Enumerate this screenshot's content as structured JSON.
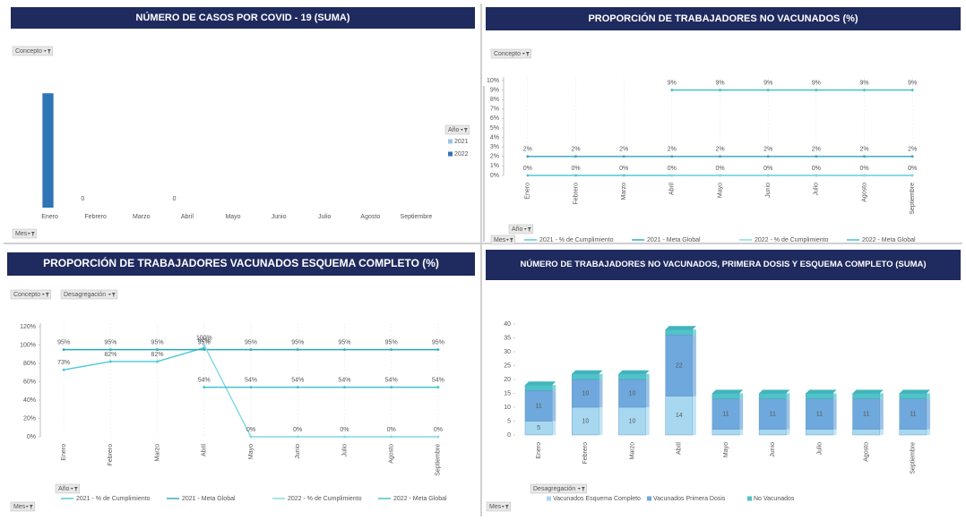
{
  "chart_data": [
    {
      "type": "bar",
      "title": "NÚMERO DE CASOS POR COVID - 19 (SUMA)",
      "filters": [
        "Concepto",
        "Año",
        "Mes"
      ],
      "categories": [
        "Enero",
        "Febrero",
        "Marzo",
        "Abril",
        "Mayo",
        "Junio",
        "Julio",
        "Agosto",
        "Septiembre"
      ],
      "series": [
        {
          "name": "2021",
          "color": "#9dc3e6",
          "values": [
            null,
            0,
            null,
            0,
            null,
            null,
            null,
            null,
            null
          ],
          "value_labels": [
            null,
            "0",
            null,
            "0",
            null,
            null,
            null,
            null,
            null
          ]
        },
        {
          "name": "2022",
          "color": "#2e75b6",
          "values": [
            9,
            null,
            null,
            null,
            null,
            null,
            null,
            null,
            null
          ]
        }
      ],
      "ylim": [
        0,
        10
      ],
      "legend": "right"
    },
    {
      "type": "line",
      "title": "PROPORCIÓN DE TRABAJADORES NO VACUNADOS (%)",
      "filters": [
        "Concepto",
        "Año",
        "Mes"
      ],
      "categories": [
        "Enero",
        "Febrero",
        "Marzo",
        "Abril",
        "Mayo",
        "Junio",
        "Julio",
        "Agosto",
        "Septiembre"
      ],
      "series": [
        {
          "name": "2021 - % de Cumplimiento",
          "color": "#4bc8d8",
          "values": [
            0,
            0,
            0,
            0,
            0,
            0,
            0,
            0,
            0
          ],
          "value_labels": [
            "0%",
            "0%",
            "0%",
            "0%",
            "0%",
            "0%",
            "0%",
            "0%",
            "0%"
          ]
        },
        {
          "name": "2021 - Meta Global",
          "color": "#2aa8b8",
          "values": [
            2,
            2,
            2,
            2,
            2,
            2,
            2,
            2,
            2
          ],
          "value_labels": [
            "2%",
            "2%",
            "2%",
            "2%",
            "2%",
            "2%",
            "2%",
            "2%",
            "2%"
          ]
        },
        {
          "name": "2022 - % de Cumplimiento",
          "color": "#7fd8e6",
          "values": [
            null,
            null,
            null,
            0,
            0,
            0,
            0,
            0,
            0
          ]
        },
        {
          "name": "2022 - Meta Global",
          "color": "#38c0cc",
          "values": [
            null,
            null,
            null,
            9,
            9,
            9,
            9,
            9,
            9
          ],
          "value_labels": [
            null,
            null,
            null,
            "9%",
            "9%",
            "9%",
            "9%",
            "9%",
            "9%"
          ]
        }
      ],
      "ylim": [
        0,
        10
      ],
      "yticks": [
        {
          "value": 0,
          "label": "0%"
        },
        {
          "value": 1,
          "label": "1%"
        },
        {
          "value": 2,
          "label": "2%"
        },
        {
          "value": 3,
          "label": "3%"
        },
        {
          "value": 4,
          "label": "4%"
        },
        {
          "value": 5,
          "label": "5%"
        },
        {
          "value": 6,
          "label": "6%"
        },
        {
          "value": 7,
          "label": "7%"
        },
        {
          "value": 8,
          "label": "8%"
        },
        {
          "value": 9,
          "label": "9%"
        },
        {
          "value": 10,
          "label": "10%"
        }
      ],
      "legend": "bottom"
    },
    {
      "type": "line",
      "title": "PROPORCIÓN DE TRABAJADORES VACUNADOS ESQUEMA COMPLETO (%)",
      "filters": [
        "Concepto",
        "Desagregación",
        "Año",
        "Mes"
      ],
      "categories": [
        "Enero",
        "Febrero",
        "Marzo",
        "Abril",
        "Mayo",
        "Junio",
        "Julio",
        "Agosto",
        "Septiembre"
      ],
      "series": [
        {
          "name": "2021 - % de Cumplimiento",
          "color": "#4bc8d8",
          "values": [
            73,
            82,
            82,
            97,
            null,
            null,
            null,
            null,
            null
          ],
          "value_labels": [
            "73%",
            "82%",
            "82%",
            "97%",
            null,
            null,
            null,
            null,
            null
          ]
        },
        {
          "name": "2021 - Meta Global",
          "color": "#2aa8b8",
          "values": [
            95,
            95,
            95,
            95,
            95,
            95,
            95,
            95,
            95
          ],
          "value_labels": [
            "95%",
            "95%",
            "95%",
            "95%",
            "95%",
            "95%",
            "95%",
            "95%",
            "95%"
          ]
        },
        {
          "name": "2022 - % de Cumplimiento",
          "color": "#7fd8e6",
          "values": [
            null,
            null,
            null,
            100,
            0,
            0,
            0,
            0,
            0
          ],
          "value_labels": [
            null,
            null,
            null,
            "100%",
            "0%",
            "0%",
            "0%",
            "0%",
            "0%"
          ]
        },
        {
          "name": "2022 - Meta Global",
          "color": "#38c0cc",
          "values": [
            null,
            null,
            null,
            54,
            54,
            54,
            54,
            54,
            54
          ],
          "value_labels": [
            null,
            null,
            null,
            "54%",
            "54%",
            "54%",
            "54%",
            "54%",
            "54%"
          ]
        }
      ],
      "ylim": [
        0,
        120
      ],
      "yticks": [
        {
          "value": 0,
          "label": "0%"
        },
        {
          "value": 20,
          "label": "20%"
        },
        {
          "value": 40,
          "label": "40%"
        },
        {
          "value": 60,
          "label": "60%"
        },
        {
          "value": 80,
          "label": "80%"
        },
        {
          "value": 100,
          "label": "100%"
        },
        {
          "value": 120,
          "label": "120%"
        }
      ],
      "legend": "bottom"
    },
    {
      "type": "bar",
      "stacked": true,
      "title": "NÚMERO DE TRABAJADORES NO VACUNADOS, PRIMERA DOSIS Y ESQUEMA COMPLETO (SUMA)",
      "filters": [
        "Desagregación",
        "Mes"
      ],
      "categories": [
        "Enero",
        "Febrero",
        "Marzo",
        "Abril",
        "Mayo",
        "Junio",
        "Julio",
        "Agosto",
        "Septiembre"
      ],
      "series": [
        {
          "name": "Vacunados Esquema Completo",
          "color": "#a8d8f0",
          "values": [
            5,
            10,
            10,
            14,
            2,
            2,
            2,
            2,
            2
          ],
          "value_labels": [
            "5",
            "10",
            "10",
            "14",
            null,
            null,
            null,
            null,
            null
          ]
        },
        {
          "name": "Vacunados Primera Dosis",
          "color": "#6fa8dc",
          "values": [
            11,
            10,
            10,
            22,
            11,
            11,
            11,
            11,
            11
          ],
          "value_labels": [
            "11",
            "10",
            "10",
            "22",
            "11",
            "11",
            "11",
            "11",
            "11"
          ]
        },
        {
          "name": "No Vacunados",
          "color": "#4fc3c7",
          "values": [
            2,
            2,
            2,
            2,
            2,
            2,
            2,
            2,
            2
          ]
        }
      ],
      "ylim": [
        0,
        40
      ],
      "yticks": [
        0,
        5,
        10,
        15,
        20,
        25,
        30,
        35,
        40
      ],
      "legend": "bottom"
    }
  ]
}
